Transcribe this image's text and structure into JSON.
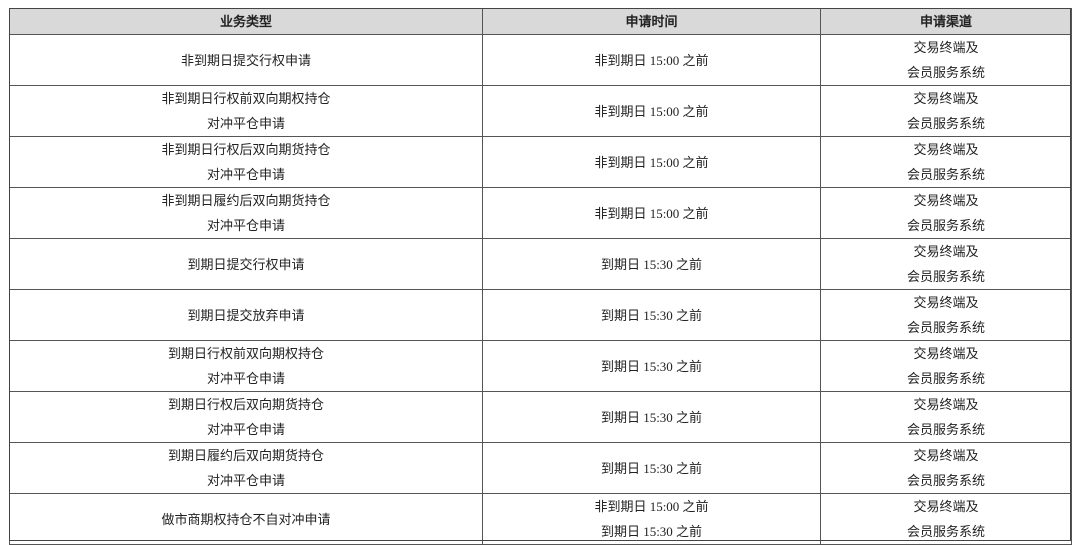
{
  "table": {
    "headers": [
      "业务类型",
      "申请时间",
      "申请渠道"
    ],
    "rows": [
      {
        "type": [
          "非到期日提交行权申请"
        ],
        "time": [
          "非到期日 15:00 之前"
        ],
        "channel": [
          "交易终端及",
          "会员服务系统"
        ]
      },
      {
        "type": [
          "非到期日行权前双向期权持仓",
          "对冲平仓申请"
        ],
        "time": [
          "非到期日 15:00 之前"
        ],
        "channel": [
          "交易终端及",
          "会员服务系统"
        ]
      },
      {
        "type": [
          "非到期日行权后双向期货持仓",
          "对冲平仓申请"
        ],
        "time": [
          "非到期日 15:00 之前"
        ],
        "channel": [
          "交易终端及",
          "会员服务系统"
        ]
      },
      {
        "type": [
          "非到期日履约后双向期货持仓",
          "对冲平仓申请"
        ],
        "time": [
          "非到期日 15:00 之前"
        ],
        "channel": [
          "交易终端及",
          "会员服务系统"
        ]
      },
      {
        "type": [
          "到期日提交行权申请"
        ],
        "time": [
          "到期日 15:30 之前"
        ],
        "channel": [
          "交易终端及",
          "会员服务系统"
        ]
      },
      {
        "type": [
          "到期日提交放弃申请"
        ],
        "time": [
          "到期日 15:30 之前"
        ],
        "channel": [
          "交易终端及",
          "会员服务系统"
        ]
      },
      {
        "type": [
          "到期日行权前双向期权持仓",
          "对冲平仓申请"
        ],
        "time": [
          "到期日 15:30 之前"
        ],
        "channel": [
          "交易终端及",
          "会员服务系统"
        ]
      },
      {
        "type": [
          "到期日行权后双向期货持仓",
          "对冲平仓申请"
        ],
        "time": [
          "到期日 15:30 之前"
        ],
        "channel": [
          "交易终端及",
          "会员服务系统"
        ]
      },
      {
        "type": [
          "到期日履约后双向期货持仓",
          "对冲平仓申请"
        ],
        "time": [
          "到期日 15:30 之前"
        ],
        "channel": [
          "交易终端及",
          "会员服务系统"
        ]
      },
      {
        "type": [
          "做市商期权持仓不自对冲申请"
        ],
        "time": [
          "非到期日 15:00 之前",
          "到期日 15:30 之前"
        ],
        "channel": [
          "交易终端及",
          "会员服务系统"
        ]
      }
    ]
  }
}
